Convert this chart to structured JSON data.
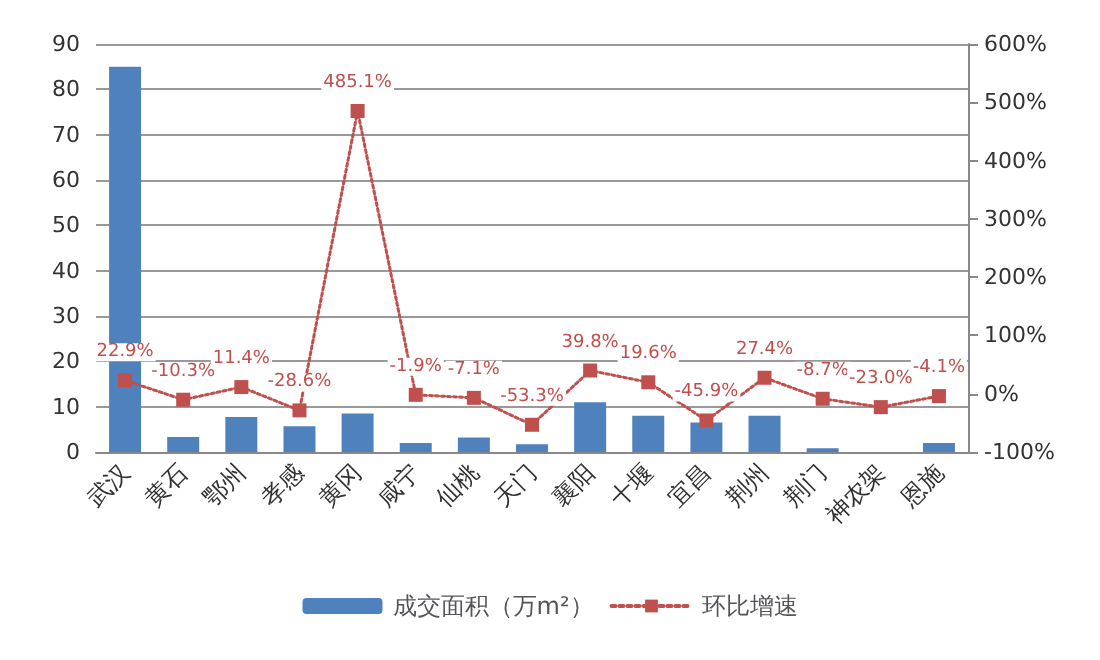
{
  "chart_data": {
    "type": "bar",
    "categories": [
      "武汉",
      "黄石",
      "鄂州",
      "孝感",
      "黄冈",
      "咸宁",
      "仙桃",
      "天门",
      "襄阳",
      "十堰",
      "宜昌",
      "荆州",
      "荆门",
      "神农架",
      "恩施"
    ],
    "series": [
      {
        "name": "成交面积（万m²）",
        "color": "#4f81bd",
        "values": [
          85,
          3.3,
          7.7,
          5.7,
          8.5,
          2,
          3.2,
          1.7,
          11,
          8,
          6.5,
          8,
          0.8,
          0,
          2
        ]
      },
      {
        "name": "环比增速",
        "type": "line",
        "axis": "y2",
        "color": "#c0504d",
        "marker": "square",
        "line_style": "dotted",
        "values": [
          22.9,
          -10.3,
          11.4,
          -28.6,
          485.1,
          -1.9,
          -7.1,
          -53.3,
          39.8,
          19.6,
          -45.9,
          27.4,
          -8.7,
          -23.0,
          -4.1
        ],
        "value_labels": [
          "22.9%",
          "-10.3%",
          "11.4%",
          "-28.6%",
          "485.1%",
          "-1.9%",
          "-7.1%",
          "-53.3%",
          "39.8%",
          "19.6%",
          "-45.9%",
          "27.4%",
          "-8.7%",
          "-23.0%",
          "-4.1%"
        ]
      }
    ],
    "ylim": [
      0,
      90
    ],
    "yticks": [
      0,
      10,
      20,
      30,
      40,
      50,
      60,
      70,
      80,
      90
    ],
    "y2lim": [
      -100,
      600
    ],
    "y2ticks": [
      {
        "value": -100,
        "label": "-100%"
      },
      {
        "value": 0,
        "label": "0%"
      },
      {
        "value": 100,
        "label": "100%"
      },
      {
        "value": 200,
        "label": "200%"
      },
      {
        "value": 300,
        "label": "300%"
      },
      {
        "value": 400,
        "label": "400%"
      },
      {
        "value": 500,
        "label": "500%"
      },
      {
        "value": 600,
        "label": "600%"
      }
    ],
    "grid": "y",
    "legend": "bottom"
  }
}
